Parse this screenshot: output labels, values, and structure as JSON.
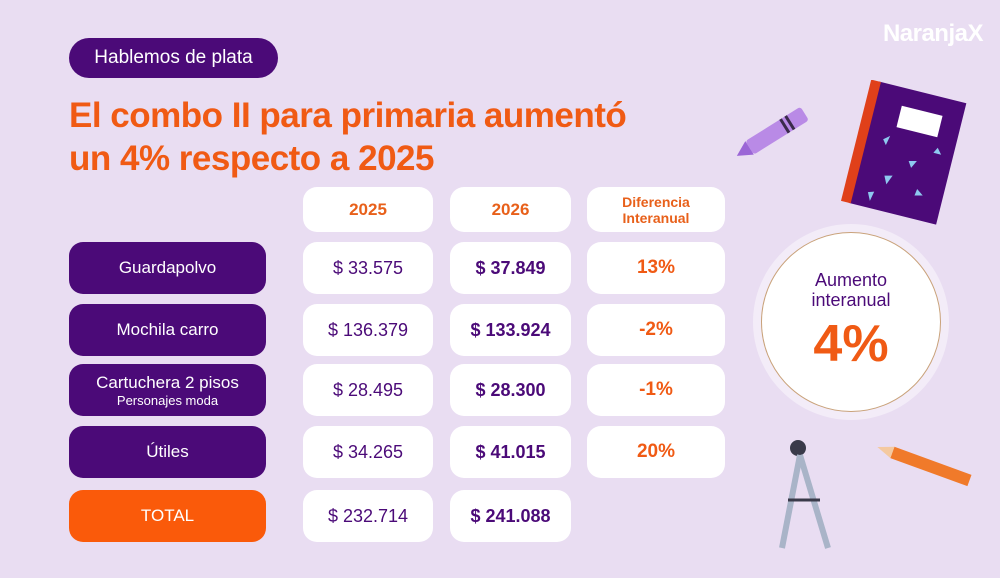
{
  "brand": "NaranjaX",
  "badge": "Hablemos de plata",
  "title_line1": "El combo II para primaria aumentó",
  "title_line2": "un 4% respecto a 2025",
  "headers": {
    "y2025": "2025",
    "y2026": "2026",
    "diff1": "Diferencia",
    "diff2": "Interanual"
  },
  "rows": [
    {
      "label": "Guardapolvo",
      "sub": "",
      "v2025": "$ 33.575",
      "v2026": "$ 37.849",
      "diff": "13%"
    },
    {
      "label": "Mochila carro",
      "sub": "",
      "v2025": "$ 136.379",
      "v2026": "$ 133.924",
      "diff": "-2%"
    },
    {
      "label": "Cartuchera 2 pisos",
      "sub": "Personajes moda",
      "v2025": "$ 28.495",
      "v2026": "$ 28.300",
      "diff": "-1%"
    },
    {
      "label": "Útiles",
      "sub": "",
      "v2025": "$ 34.265",
      "v2026": "$ 41.015",
      "diff": "20%"
    }
  ],
  "total": {
    "label": "TOTAL",
    "v2025": "$ 232.714",
    "v2026": "$ 241.088"
  },
  "summary": {
    "line1": "Aumento",
    "line2": "interanual",
    "value": "4%"
  },
  "colors": {
    "background": "#e9ddf2",
    "purple": "#4b0a78",
    "orange": "#f05a14"
  }
}
